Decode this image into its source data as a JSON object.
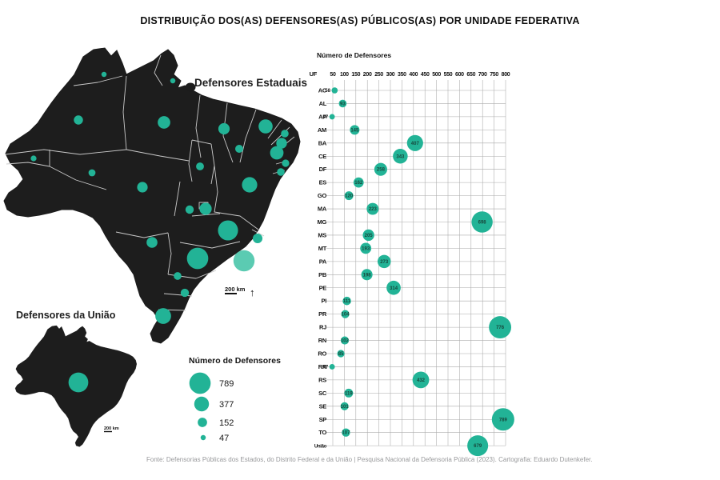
{
  "title": "DISTRIBUIÇÃO DOS(AS) DEFENSORES(AS) PÚBLICOS(AS) POR UNIDADE FEDERATIVA",
  "main_map": {
    "label": "Defensores Estaduais",
    "scale_label": "200 km",
    "north_arrow": "↑"
  },
  "union_map": {
    "label": "Defensores da União",
    "scale_label": "200 km",
    "value": 679
  },
  "legend": {
    "title": "Número de Defensores",
    "sizes": [
      789,
      377,
      152,
      47
    ]
  },
  "chart_data": {
    "type": "scatter",
    "title": "Número de Defensores",
    "uf_header": "UF",
    "x_ticks": [
      50,
      100,
      150,
      200,
      250,
      300,
      350,
      400,
      450,
      500,
      550,
      600,
      650,
      700,
      750,
      800
    ],
    "xlim": [
      50,
      800
    ],
    "rows": [
      {
        "uf": "AC",
        "value": 58
      },
      {
        "uf": "AL",
        "value": 93
      },
      {
        "uf": "AP",
        "value": 47
      },
      {
        "uf": "AM",
        "value": 145
      },
      {
        "uf": "BA",
        "value": 407
      },
      {
        "uf": "CE",
        "value": 343
      },
      {
        "uf": "DF",
        "value": 258
      },
      {
        "uf": "ES",
        "value": 162
      },
      {
        "uf": "GO",
        "value": 120
      },
      {
        "uf": "MA",
        "value": 223
      },
      {
        "uf": "MG",
        "value": 698
      },
      {
        "uf": "MS",
        "value": 205
      },
      {
        "uf": "MT",
        "value": 193
      },
      {
        "uf": "PA",
        "value": 273
      },
      {
        "uf": "PB",
        "value": 198
      },
      {
        "uf": "PE",
        "value": 314
      },
      {
        "uf": "PI",
        "value": 111
      },
      {
        "uf": "PR",
        "value": 104
      },
      {
        "uf": "RJ",
        "value": 776
      },
      {
        "uf": "RN",
        "value": 102
      },
      {
        "uf": "RO",
        "value": 85
      },
      {
        "uf": "RR",
        "value": 47
      },
      {
        "uf": "RS",
        "value": 432
      },
      {
        "uf": "SC",
        "value": 119
      },
      {
        "uf": "SE",
        "value": 101
      },
      {
        "uf": "SP",
        "value": 789
      },
      {
        "uf": "TO",
        "value": 107
      },
      {
        "uf": "União",
        "value": 679
      }
    ]
  },
  "footer": "Fonte: Defensorias Públicas dos Estados, do Distrito Federal e da União | Pesquisa Nacional da Defensoria Pública (2023). Cartografia: Eduardo Dutenkefer.",
  "colors": {
    "bubble": "#22b396",
    "bubble_light": "#5bcbb2",
    "map_fill": "#1d1d1d",
    "grid": "#aaaaaa"
  }
}
